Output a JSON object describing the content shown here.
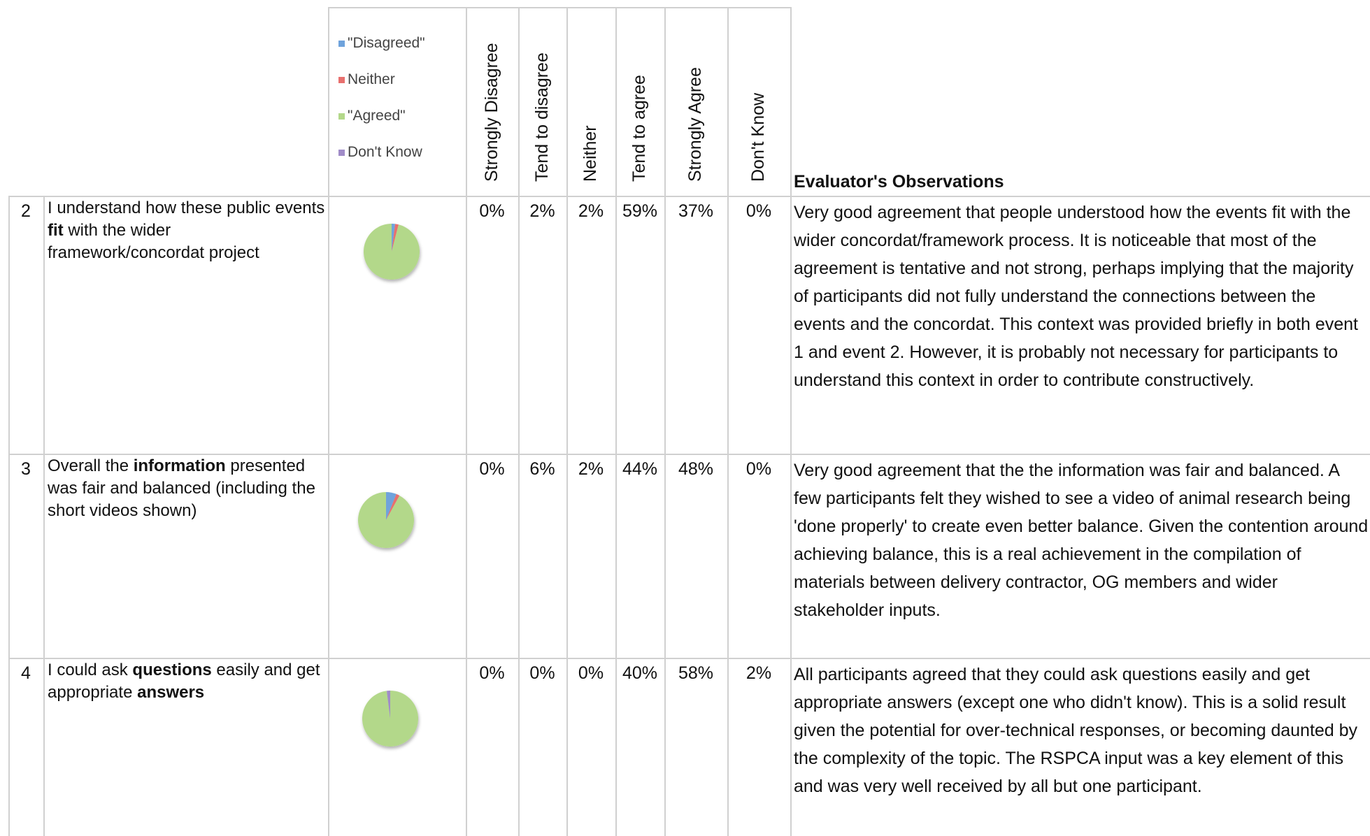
{
  "header": {
    "legend": [
      {
        "label": "\"Disagreed\"",
        "color": "#6fa3dc"
      },
      {
        "label": "Neither",
        "color": "#e8706e"
      },
      {
        "label": "\"Agreed\"",
        "color": "#b3d88a"
      },
      {
        "label": "Don't Know",
        "color": "#a08cc8"
      }
    ],
    "columns": [
      "Strongly Disagree",
      "Tend to disagree",
      "Neither",
      "Tend to agree",
      "Strongly Agree",
      "Don't Know"
    ],
    "observations": "Evaluator's Observations"
  },
  "table": {
    "rows": [
      {
        "number": "2",
        "statement": [
          {
            "text": "I understand how these public events "
          },
          {
            "text": "fit",
            "bold": true
          },
          {
            "text": " with the wider framework/concordat project"
          }
        ],
        "values": [
          0,
          2,
          2,
          59,
          37,
          0
        ],
        "value_labels": [
          "0%",
          "2%",
          "2%",
          "59%",
          "37%",
          "0%"
        ],
        "observation": "Very good agreement that people understood how the events fit with the wider concordat/framework process. It is noticeable that most of the agreement is tentative and not strong, perhaps implying that the majority of participants did not fully understand the connections between the events and the concordat.  This context was provided briefly in both event 1 and event 2.  However, it is probably not necessary for participants to understand this context in order to contribute constructively."
      },
      {
        "number": "3",
        "statement": [
          {
            "text": "Overall the "
          },
          {
            "text": "information",
            "bold": true
          },
          {
            "text": " presented was fair and balanced (including the short videos shown)"
          }
        ],
        "values": [
          0,
          6,
          2,
          44,
          48,
          0
        ],
        "value_labels": [
          "0%",
          "6%",
          "2%",
          "44%",
          "48%",
          "0%"
        ],
        "observation": "Very good agreement that the the information was fair and balanced.  A few participants felt they wished to see a video of animal research being 'done properly' to create even better balance.  Given the contention around achieving balance, this is a real achievement in the compilation of materials between delivery contractor, OG members and wider stakeholder inputs."
      },
      {
        "number": "4",
        "statement": [
          {
            "text": "I could ask "
          },
          {
            "text": "questions",
            "bold": true
          },
          {
            "text": " easily and get appropriate "
          },
          {
            "text": "answers",
            "bold": true
          }
        ],
        "values": [
          0,
          0,
          0,
          40,
          58,
          2
        ],
        "value_labels": [
          "0%",
          "0%",
          "0%",
          "40%",
          "58%",
          "2%"
        ],
        "observation": "All participants agreed that they could ask questions easily and get appropriate answers (except one who didn't know).  This is a solid result given the potential for over-technical responses, or becoming daunted by the complexity of the topic. The RSPCA input was a key element of this and was very well received by all but one participant."
      }
    ]
  }
}
